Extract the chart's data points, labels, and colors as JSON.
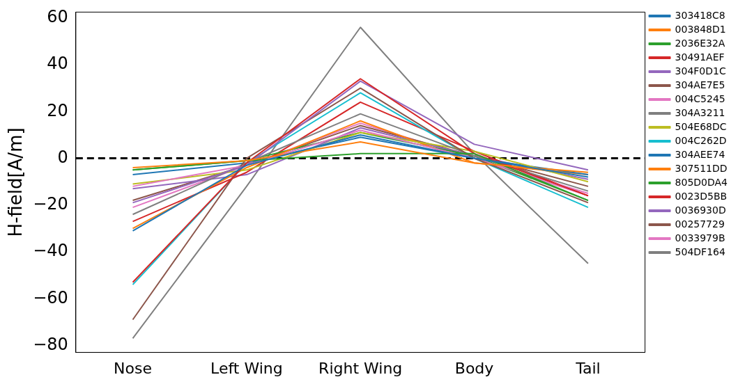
{
  "chart_data": {
    "type": "line",
    "ylabel": "H-field[A/m]",
    "categories": [
      "Nose",
      "Left Wing",
      "Right Wing",
      "Body",
      "Tail"
    ],
    "series": [
      {
        "name": "303418C8",
        "color": "#1f77b4",
        "values": [
          -31,
          -3,
          10,
          0,
          -8
        ]
      },
      {
        "name": "003848D1",
        "color": "#ff7f0e",
        "values": [
          -4,
          -1,
          7,
          -2,
          -6
        ]
      },
      {
        "name": "2036E32A",
        "color": "#2ca02c",
        "values": [
          -5,
          -1,
          2,
          2,
          -18
        ]
      },
      {
        "name": "30491AEF",
        "color": "#d62728",
        "values": [
          -53,
          -2,
          34,
          2,
          -16
        ]
      },
      {
        "name": "304F0D1C",
        "color": "#9467bd",
        "values": [
          -19,
          -3,
          33,
          6,
          -5
        ]
      },
      {
        "name": "304AE7E5",
        "color": "#8c564b",
        "values": [
          -69,
          0,
          30,
          0,
          -19
        ]
      },
      {
        "name": "004C5245",
        "color": "#e377c2",
        "values": [
          -12,
          -3,
          12,
          0,
          -15
        ]
      },
      {
        "name": "304A3211",
        "color": "#7f7f7f",
        "values": [
          -24,
          -2,
          19,
          1,
          -14
        ]
      },
      {
        "name": "504E68DC",
        "color": "#bcbd22",
        "values": [
          -11,
          -5,
          11,
          3,
          -10
        ]
      },
      {
        "name": "004C262D",
        "color": "#17becf",
        "values": [
          -54,
          -2,
          28,
          0,
          -21
        ]
      },
      {
        "name": "304AEE74",
        "color": "#1f77b4",
        "values": [
          -7,
          -2,
          9,
          0,
          -7
        ]
      },
      {
        "name": "307511DD",
        "color": "#ff7f0e",
        "values": [
          -30,
          -4,
          16,
          -2,
          -7
        ]
      },
      {
        "name": "805D0DA4",
        "color": "#2ca02c",
        "values": [
          -5,
          -1,
          11,
          1,
          -18
        ]
      },
      {
        "name": "0023D5BB",
        "color": "#d62728",
        "values": [
          -27,
          -6,
          24,
          3,
          -16
        ]
      },
      {
        "name": "0036930D",
        "color": "#9467bd",
        "values": [
          -13,
          -7,
          13,
          1,
          -9
        ]
      },
      {
        "name": "00257729",
        "color": "#8c564b",
        "values": [
          -18,
          -3,
          14,
          1,
          -12
        ]
      },
      {
        "name": "0033979B",
        "color": "#e377c2",
        "values": [
          -21,
          -3,
          15,
          0,
          -16
        ]
      },
      {
        "name": "504DF164",
        "color": "#7f7f7f",
        "values": [
          -77,
          -12,
          56,
          2,
          -45
        ]
      }
    ],
    "ylim": [
      -83,
      62.5
    ],
    "yticks": [
      -80,
      -60,
      -40,
      -20,
      0,
      20,
      40,
      60
    ],
    "ref_lines": [
      {
        "axis": "y",
        "value": 0,
        "color": "#000000",
        "line_style": "dashed"
      }
    ],
    "grid": false,
    "legend": "right",
    "marker": "none",
    "line_style": "solid"
  }
}
